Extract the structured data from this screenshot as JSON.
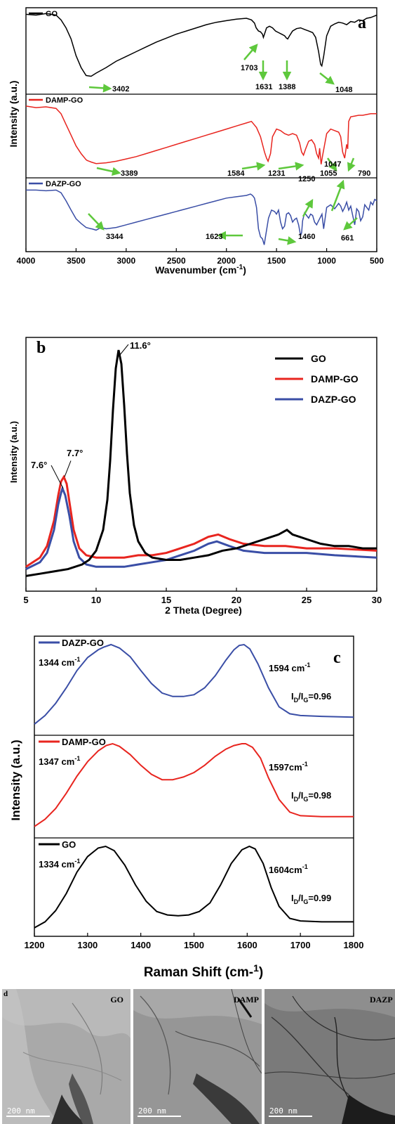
{
  "chart_data": [
    {
      "type": "line",
      "panel": "a",
      "xlabel": "Wavenumber (cm",
      "xlabel_sup": "-1",
      "xlabel_tail": ")",
      "ylabel": "Intensity (a.u.)",
      "xlim": [
        4000,
        500
      ],
      "xticks": [
        4000,
        3500,
        3000,
        2500,
        2000,
        1500,
        1000,
        500
      ],
      "series": [
        {
          "name": "GO",
          "color": "#000000",
          "x": [
            4000,
            3900,
            3800,
            3700,
            3650,
            3600,
            3550,
            3500,
            3450,
            3400,
            3350,
            3300,
            3200,
            3100,
            3000,
            2900,
            2800,
            2700,
            2600,
            2500,
            2400,
            2300,
            2200,
            2100,
            2000,
            1900,
            1800,
            1750,
            1720,
            1703,
            1680,
            1660,
            1640,
            1631,
            1615,
            1600,
            1570,
            1540,
            1510,
            1480,
            1450,
            1420,
            1400,
            1388,
            1370,
            1340,
            1300,
            1260,
            1220,
            1180,
            1140,
            1110,
            1080,
            1060,
            1048,
            1030,
            1000,
            960,
            920,
            880,
            840,
            800,
            760,
            720,
            680,
            640,
            600,
            560,
            520,
            500
          ],
          "y": [
            0.97,
            0.96,
            0.98,
            0.96,
            0.9,
            0.8,
            0.66,
            0.45,
            0.3,
            0.2,
            0.19,
            0.23,
            0.3,
            0.38,
            0.44,
            0.5,
            0.56,
            0.62,
            0.67,
            0.72,
            0.76,
            0.8,
            0.84,
            0.87,
            0.89,
            0.91,
            0.92,
            0.9,
            0.86,
            0.8,
            0.76,
            0.75,
            0.72,
            0.68,
            0.74,
            0.8,
            0.82,
            0.8,
            0.76,
            0.74,
            0.72,
            0.7,
            0.67,
            0.66,
            0.7,
            0.76,
            0.79,
            0.8,
            0.78,
            0.76,
            0.74,
            0.68,
            0.5,
            0.34,
            0.32,
            0.44,
            0.7,
            0.82,
            0.85,
            0.87,
            0.86,
            0.84,
            0.88,
            0.87,
            0.9,
            0.89,
            0.92,
            0.93,
            0.95,
            0.96
          ]
        },
        {
          "name": "DAMP-GO",
          "color": "#e8251f",
          "x": [
            4000,
            3900,
            3800,
            3700,
            3650,
            3600,
            3550,
            3500,
            3450,
            3400,
            3389,
            3350,
            3300,
            3200,
            3100,
            3000,
            2900,
            2800,
            2700,
            2600,
            2500,
            2400,
            2300,
            2200,
            2100,
            2000,
            1900,
            1800,
            1750,
            1700,
            1660,
            1620,
            1600,
            1584,
            1560,
            1540,
            1500,
            1460,
            1420,
            1380,
            1340,
            1300,
            1270,
            1250,
            1231,
            1210,
            1180,
            1150,
            1120,
            1100,
            1080,
            1070,
            1055,
            1040,
            1000,
            960,
            920,
            880,
            860,
            840,
            820,
            800,
            790,
            780,
            760,
            720,
            680,
            640,
            600,
            560,
            500
          ],
          "y": [
            0.9,
            0.88,
            0.89,
            0.87,
            0.8,
            0.66,
            0.52,
            0.38,
            0.28,
            0.2,
            0.19,
            0.17,
            0.15,
            0.16,
            0.18,
            0.21,
            0.24,
            0.28,
            0.32,
            0.36,
            0.4,
            0.44,
            0.48,
            0.52,
            0.56,
            0.6,
            0.64,
            0.68,
            0.7,
            0.62,
            0.5,
            0.3,
            0.22,
            0.18,
            0.28,
            0.5,
            0.6,
            0.58,
            0.54,
            0.52,
            0.54,
            0.52,
            0.42,
            0.3,
            0.26,
            0.34,
            0.44,
            0.46,
            0.4,
            0.28,
            0.22,
            0.35,
            0.14,
            0.26,
            0.54,
            0.6,
            0.58,
            0.56,
            0.5,
            0.3,
            0.22,
            0.4,
            0.34,
            0.7,
            0.76,
            0.77,
            0.78,
            0.78,
            0.79,
            0.8,
            0.8
          ]
        },
        {
          "name": "DAZP-GO",
          "color": "#3a4ea6",
          "x": [
            4000,
            3900,
            3800,
            3700,
            3650,
            3600,
            3550,
            3500,
            3450,
            3400,
            3350,
            3344,
            3300,
            3250,
            3200,
            3100,
            3000,
            2900,
            2800,
            2700,
            2600,
            2500,
            2400,
            2300,
            2200,
            2100,
            2000,
            1900,
            1800,
            1760,
            1740,
            1720,
            1700,
            1680,
            1660,
            1640,
            1623,
            1610,
            1580,
            1550,
            1520,
            1500,
            1480,
            1460,
            1440,
            1420,
            1400,
            1380,
            1360,
            1340,
            1320,
            1300,
            1280,
            1260,
            1250,
            1240,
            1220,
            1200,
            1180,
            1160,
            1140,
            1120,
            1100,
            1080,
            1060,
            1047,
            1030,
            1000,
            960,
            920,
            880,
            860,
            840,
            820,
            800,
            780,
            760,
            740,
            720,
            700,
            680,
            661,
            640,
            620,
            600,
            580,
            560,
            540,
            520,
            500
          ],
          "y": [
            0.88,
            0.88,
            0.87,
            0.88,
            0.84,
            0.72,
            0.58,
            0.45,
            0.38,
            0.32,
            0.3,
            0.3,
            0.28,
            0.32,
            0.3,
            0.32,
            0.36,
            0.4,
            0.44,
            0.48,
            0.52,
            0.56,
            0.6,
            0.64,
            0.68,
            0.72,
            0.76,
            0.78,
            0.8,
            0.82,
            0.8,
            0.76,
            0.62,
            0.3,
            0.18,
            0.15,
            0.06,
            0.18,
            0.46,
            0.58,
            0.56,
            0.52,
            0.58,
            0.4,
            0.3,
            0.34,
            0.52,
            0.54,
            0.5,
            0.4,
            0.44,
            0.46,
            0.36,
            0.2,
            0.24,
            0.42,
            0.54,
            0.5,
            0.46,
            0.52,
            0.5,
            0.4,
            0.36,
            0.42,
            0.48,
            0.52,
            0.3,
            0.62,
            0.66,
            0.6,
            0.68,
            0.64,
            0.56,
            0.62,
            0.7,
            0.58,
            0.64,
            0.5,
            0.36,
            0.6,
            0.56,
            0.42,
            0.48,
            0.66,
            0.62,
            0.58,
            0.7,
            0.66,
            0.74,
            0.72
          ]
        }
      ],
      "annotations": [
        {
          "series": "GO",
          "labels": [
            "3402",
            "1703",
            "1631",
            "1388",
            "1048"
          ]
        },
        {
          "series": "DAMP-GO",
          "labels": [
            "3389",
            "1584",
            "1231",
            "1055",
            "790"
          ]
        },
        {
          "series": "DAZP-GO",
          "labels": [
            "3344",
            "1623",
            "1460",
            "1250",
            "1047",
            "661"
          ]
        }
      ]
    },
    {
      "type": "line",
      "panel": "b",
      "xlabel": "2 Theta (Degree)",
      "ylabel": "Intensity (a.u.)",
      "xlim": [
        5,
        30
      ],
      "xticks": [
        5,
        10,
        15,
        20,
        25,
        30
      ],
      "legend_position": "top-right",
      "series": [
        {
          "name": "GO",
          "color": "#000000",
          "x": [
            5,
            6,
            7,
            8,
            9,
            9.5,
            10,
            10.5,
            10.8,
            11,
            11.2,
            11.4,
            11.6,
            11.8,
            12,
            12.2,
            12.4,
            12.7,
            13,
            13.5,
            14,
            15,
            16,
            17,
            18,
            19,
            20,
            21,
            22,
            23,
            23.6,
            24,
            25,
            26,
            27,
            28,
            29,
            30
          ],
          "y": [
            0.02,
            0.03,
            0.04,
            0.05,
            0.07,
            0.09,
            0.13,
            0.22,
            0.35,
            0.52,
            0.74,
            0.92,
            1.0,
            0.94,
            0.76,
            0.55,
            0.38,
            0.24,
            0.17,
            0.12,
            0.1,
            0.09,
            0.09,
            0.1,
            0.11,
            0.13,
            0.14,
            0.16,
            0.18,
            0.2,
            0.22,
            0.2,
            0.18,
            0.16,
            0.15,
            0.15,
            0.14,
            0.14
          ]
        },
        {
          "name": "DAMP-GO",
          "color": "#e8251f",
          "x": [
            5,
            6,
            6.5,
            7,
            7.3,
            7.5,
            7.7,
            7.9,
            8.1,
            8.4,
            8.8,
            9.3,
            10,
            11,
            12,
            13,
            14,
            15,
            16,
            17,
            18,
            18.7,
            19.5,
            20.5,
            22,
            23.5,
            25,
            27,
            30
          ],
          "y": [
            0.06,
            0.1,
            0.15,
            0.26,
            0.37,
            0.43,
            0.45,
            0.42,
            0.34,
            0.22,
            0.14,
            0.11,
            0.1,
            0.1,
            0.1,
            0.11,
            0.11,
            0.12,
            0.14,
            0.16,
            0.19,
            0.2,
            0.18,
            0.16,
            0.15,
            0.15,
            0.14,
            0.14,
            0.13
          ]
        },
        {
          "name": "DAZP-GO",
          "color": "#3a4ea6",
          "x": [
            5,
            6,
            6.5,
            7,
            7.3,
            7.5,
            7.6,
            7.8,
            8.1,
            8.4,
            8.8,
            9.3,
            10,
            11,
            12,
            13,
            14,
            15,
            16,
            17,
            18,
            18.6,
            19.5,
            20.5,
            22,
            23.5,
            25,
            27,
            30
          ],
          "y": [
            0.05,
            0.08,
            0.12,
            0.22,
            0.33,
            0.38,
            0.4,
            0.37,
            0.28,
            0.17,
            0.1,
            0.07,
            0.06,
            0.06,
            0.06,
            0.07,
            0.08,
            0.09,
            0.11,
            0.13,
            0.16,
            0.17,
            0.15,
            0.13,
            0.12,
            0.12,
            0.12,
            0.11,
            0.1
          ]
        }
      ],
      "annotations": [
        "11.6°",
        "7.6°",
        "7.7°"
      ]
    },
    {
      "type": "line",
      "panel": "c",
      "xlabel": "Raman Shift (cm-",
      "xlabel_sup": "1",
      "xlabel_tail": ")",
      "ylabel": "Intensity (a.u.)",
      "xlim": [
        1200,
        1800
      ],
      "xticks": [
        1200,
        1300,
        1400,
        1500,
        1600,
        1700,
        1800
      ],
      "series": [
        {
          "name": "DAZP-GO",
          "color": "#3a4ea6",
          "x": [
            1200,
            1220,
            1240,
            1260,
            1280,
            1300,
            1320,
            1330,
            1344,
            1360,
            1380,
            1400,
            1420,
            1440,
            1460,
            1480,
            1500,
            1520,
            1540,
            1560,
            1575,
            1585,
            1594,
            1605,
            1620,
            1640,
            1660,
            1680,
            1700,
            1740,
            1800
          ],
          "y": [
            0.08,
            0.18,
            0.32,
            0.5,
            0.7,
            0.85,
            0.94,
            0.97,
            1.0,
            0.96,
            0.86,
            0.7,
            0.55,
            0.44,
            0.4,
            0.4,
            0.42,
            0.5,
            0.64,
            0.82,
            0.94,
            0.99,
            1.0,
            0.95,
            0.78,
            0.5,
            0.28,
            0.2,
            0.18,
            0.17,
            0.16
          ]
        },
        {
          "name": "DAMP-GO",
          "color": "#e8251f",
          "x": [
            1200,
            1220,
            1240,
            1260,
            1280,
            1300,
            1320,
            1335,
            1347,
            1360,
            1380,
            1400,
            1420,
            1440,
            1460,
            1480,
            1500,
            1520,
            1540,
            1560,
            1575,
            1590,
            1597,
            1610,
            1625,
            1640,
            1660,
            1680,
            1700,
            1740,
            1800
          ],
          "y": [
            0.08,
            0.16,
            0.28,
            0.45,
            0.64,
            0.8,
            0.92,
            0.98,
            1.0,
            0.97,
            0.88,
            0.76,
            0.66,
            0.6,
            0.6,
            0.63,
            0.68,
            0.76,
            0.86,
            0.94,
            0.98,
            1.0,
            1.0,
            0.96,
            0.84,
            0.62,
            0.38,
            0.24,
            0.2,
            0.19,
            0.19
          ]
        },
        {
          "name": "GO",
          "color": "#000000",
          "x": [
            1200,
            1220,
            1240,
            1260,
            1280,
            1300,
            1320,
            1334,
            1350,
            1370,
            1390,
            1410,
            1430,
            1450,
            1470,
            1490,
            1510,
            1530,
            1550,
            1570,
            1590,
            1604,
            1615,
            1630,
            1645,
            1660,
            1680,
            1700,
            1740,
            1800
          ],
          "y": [
            0.05,
            0.12,
            0.25,
            0.45,
            0.7,
            0.88,
            0.98,
            1.0,
            0.95,
            0.78,
            0.55,
            0.36,
            0.24,
            0.2,
            0.19,
            0.2,
            0.24,
            0.34,
            0.55,
            0.8,
            0.96,
            1.0,
            0.97,
            0.8,
            0.52,
            0.3,
            0.16,
            0.13,
            0.12,
            0.12
          ]
        }
      ],
      "annotations": [
        {
          "series": "DAZP-GO",
          "peak1": "1344 cm",
          "peak2": "1594 cm",
          "sup": "-1",
          "ratio_value": "=0.96"
        },
        {
          "series": "DAMP-GO",
          "peak1": "1347 cm",
          "peak2": "1597cm",
          "sup": "-1",
          "ratio_value": "=0.98"
        },
        {
          "series": "GO",
          "peak1": "1334 cm",
          "peak2": "1604cm",
          "sup": "-1",
          "ratio_value": "=0.99"
        }
      ],
      "ratio": {
        "i": "I",
        "d": "D",
        "slash": "/",
        "g": "G"
      }
    }
  ],
  "panel_letters": {
    "a": "a",
    "b": "b",
    "c": "c",
    "d": "d"
  },
  "tem": {
    "scale_label": "200 nm",
    "images": [
      {
        "label": "GO"
      },
      {
        "label": "DAMP"
      },
      {
        "label": "DAZP"
      }
    ]
  }
}
